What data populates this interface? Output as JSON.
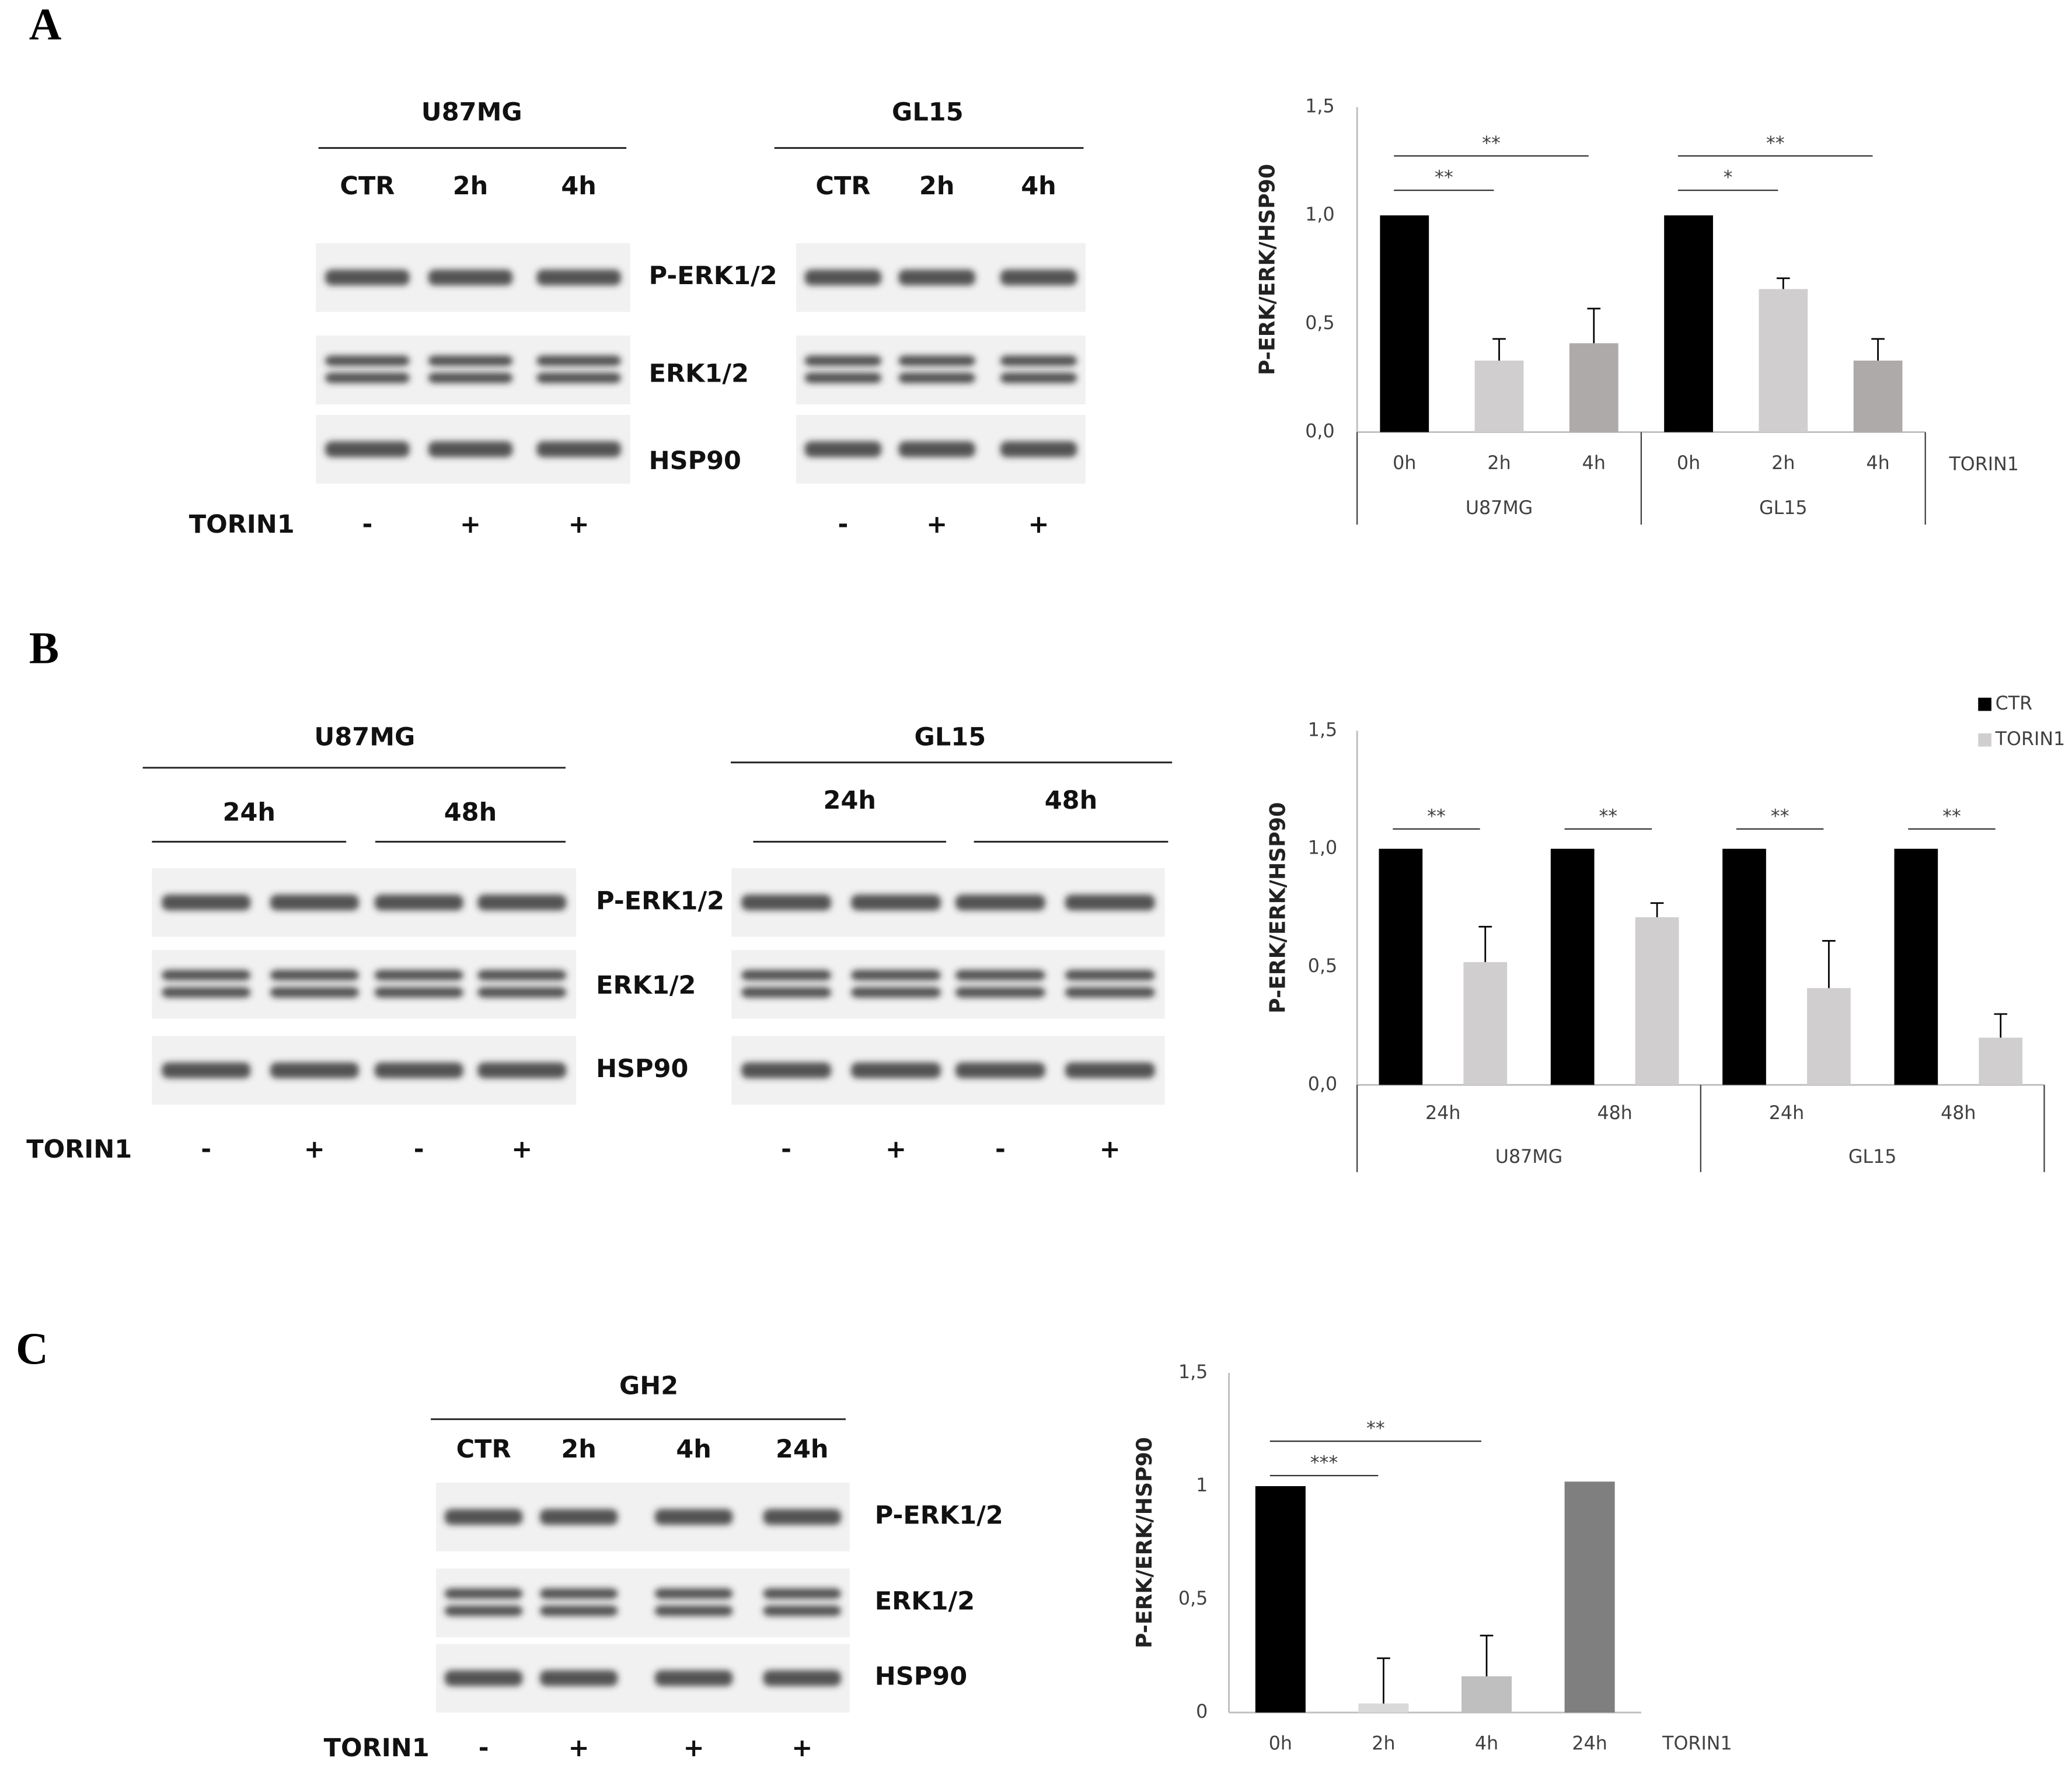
{
  "panels": [
    {
      "letter": "A",
      "treatment_label": "TORIN1",
      "bands": [
        "P-ERK1/2",
        "ERK1/2",
        "HSP90"
      ],
      "blots": [
        {
          "cell_line": "U87MG",
          "lanes": [
            "CTR",
            "2h",
            "4h"
          ],
          "treatment": [
            "-",
            "+",
            "+"
          ]
        },
        {
          "cell_line": "GL15",
          "lanes": [
            "CTR",
            "2h",
            "4h"
          ],
          "treatment": [
            "-",
            "+",
            "+"
          ]
        }
      ]
    },
    {
      "letter": "B",
      "treatment_label": "TORIN1",
      "bands": [
        "P-ERK1/2",
        "ERK1/2",
        "HSP90"
      ],
      "blots": [
        {
          "cell_line": "U87MG",
          "timepoints": [
            "24h",
            "48h"
          ],
          "treatment": [
            "-",
            "+",
            "-",
            "+"
          ]
        },
        {
          "cell_line": "GL15",
          "timepoints": [
            "24h",
            "48h"
          ],
          "treatment": [
            "-",
            "+",
            "-",
            "+"
          ]
        }
      ]
    },
    {
      "letter": "C",
      "treatment_label": "TORIN1",
      "bands": [
        "P-ERK1/2",
        "ERK1/2",
        "HSP90"
      ],
      "blots": [
        {
          "cell_line": "GH2",
          "lanes": [
            "CTR",
            "2h",
            "4h",
            "24h"
          ],
          "treatment": [
            "-",
            "+",
            "+",
            "+"
          ]
        }
      ]
    }
  ],
  "chart_data": [
    {
      "type": "bar",
      "y_label": "P-ERK/ERK/HSP90",
      "x_label": "TORIN1",
      "ylim": [
        0,
        1.5
      ],
      "yticks": [
        {
          "value": 0,
          "label": "0,0"
        },
        {
          "value": 0.5,
          "label": "0,5"
        },
        {
          "value": 1,
          "label": "1,0"
        },
        {
          "value": 1.5,
          "label": "1,5"
        }
      ],
      "colors": [
        "#000000",
        "#d0cece",
        "#aeaaaa"
      ],
      "groups": [
        {
          "name": "U87MG",
          "categories": [
            "0h",
            "2h",
            "4h"
          ],
          "values": [
            1.0,
            0.33,
            0.41
          ],
          "errors": [
            null,
            0.1,
            0.16
          ],
          "annotations": [
            {
              "text": "**",
              "between": [
                "0h",
                "2h"
              ]
            },
            {
              "text": "**",
              "between": [
                "0h",
                "4h"
              ]
            }
          ]
        },
        {
          "name": "GL15",
          "categories": [
            "0h",
            "2h",
            "4h"
          ],
          "values": [
            1.0,
            0.66,
            0.33
          ],
          "errors": [
            null,
            0.05,
            0.1
          ],
          "annotations": [
            {
              "text": "*",
              "between": [
                "0h",
                "2h"
              ]
            },
            {
              "text": "**",
              "between": [
                "0h",
                "4h"
              ]
            }
          ]
        }
      ]
    },
    {
      "type": "bar",
      "y_label": "P-ERK/ERK/HSP90",
      "ylim": [
        0,
        1.5
      ],
      "yticks": [
        {
          "value": 0,
          "label": "0,0"
        },
        {
          "value": 0.5,
          "label": "0,5"
        },
        {
          "value": 1,
          "label": "1,0"
        },
        {
          "value": 1.5,
          "label": "1,5"
        }
      ],
      "groups": [
        {
          "name": "U87MG",
          "categories": [
            "24h",
            "48h"
          ]
        },
        {
          "name": "GL15",
          "categories": [
            "24h",
            "48h"
          ]
        }
      ],
      "series": [
        {
          "name": "CTR",
          "color": "#000000",
          "values": [
            1,
            1,
            1,
            1
          ]
        },
        {
          "name": "TORIN1",
          "color": "#d0cece",
          "values": [
            0.52,
            0.71,
            0.41,
            0.2
          ],
          "errors": [
            0.15,
            0.06,
            0.2,
            0.1
          ]
        }
      ],
      "annotations": [
        "**",
        "**",
        "**",
        "**"
      ],
      "legend": "top-right"
    },
    {
      "type": "bar",
      "y_label": "P-ERK/ERK/HSP90",
      "x_label": "TORIN1",
      "ylim": [
        0,
        1.5
      ],
      "yticks": [
        0,
        {
          "value": 0.5,
          "label": "0,5"
        },
        1,
        {
          "value": 1.5,
          "label": "1,5"
        }
      ],
      "categories": [
        "0h",
        "2h",
        "4h",
        "24h"
      ],
      "values": [
        1.0,
        0.04,
        0.16,
        1.02
      ],
      "errors": [
        null,
        0.2,
        0.18,
        null
      ],
      "colors": [
        "#000000",
        "#d9d9d9",
        "#bfbfbf",
        "#7f7f7f"
      ],
      "annotations": [
        {
          "text": "***",
          "between": [
            "0h",
            "2h"
          ]
        },
        {
          "text": "**",
          "between": [
            "0h",
            "4h"
          ]
        }
      ]
    }
  ]
}
